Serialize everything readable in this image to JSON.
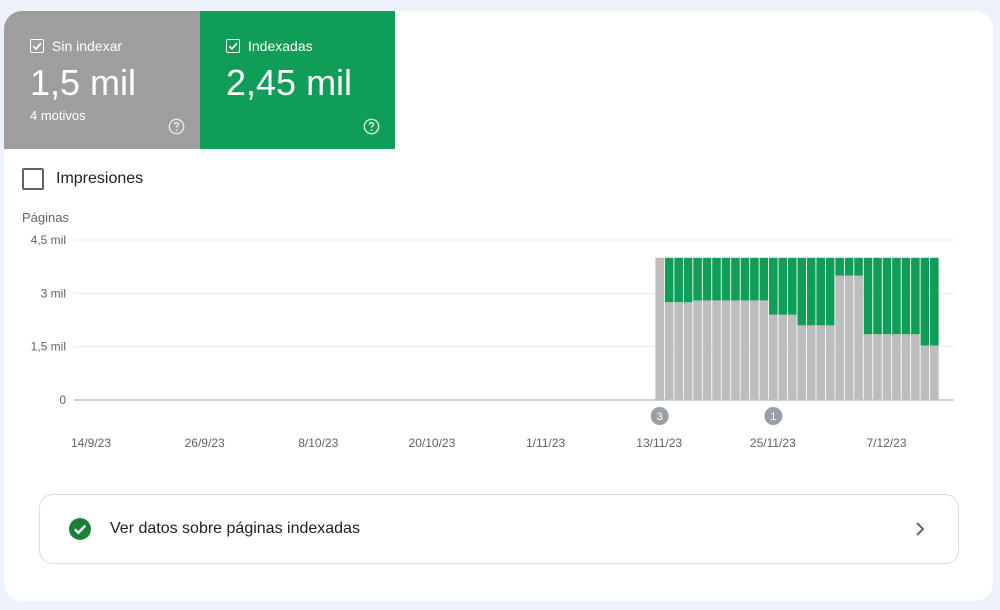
{
  "tiles": {
    "not_indexed": {
      "label": "Sin indexar",
      "value": "1,5 mil",
      "sub": "4 motivos",
      "color": "#9e9e9e",
      "help_icon": "help-circle-icon"
    },
    "indexed": {
      "label": "Indexadas",
      "value": "2,45 mil",
      "color": "#0f9d58",
      "help_icon": "help-circle-icon"
    }
  },
  "impressions_toggle": {
    "label": "Impresiones",
    "checked": false
  },
  "chart_data": {
    "type": "bar",
    "stacked": true,
    "ylabel": "Páginas",
    "yticks": [
      "0",
      "1,5 mil",
      "3 mil",
      "4,5 mil"
    ],
    "ytick_values": [
      0,
      1500,
      3000,
      4500
    ],
    "ylim": [
      0,
      4500
    ],
    "xticks": [
      "14/9/23",
      "26/9/23",
      "8/10/23",
      "20/10/23",
      "1/11/23",
      "13/11/23",
      "25/11/23",
      "7/12/23"
    ],
    "xtick_days": [
      "2023-09-14",
      "2023-09-26",
      "2023-10-08",
      "2023-10-20",
      "2023-11-01",
      "2023-11-13",
      "2023-11-25",
      "2023-12-07"
    ],
    "grid": true,
    "categories": [
      "2023-11-13",
      "2023-11-14",
      "2023-11-15",
      "2023-11-16",
      "2023-11-17",
      "2023-11-18",
      "2023-11-19",
      "2023-11-20",
      "2023-11-21",
      "2023-11-22",
      "2023-11-23",
      "2023-11-24",
      "2023-11-25",
      "2023-11-26",
      "2023-11-27",
      "2023-11-28",
      "2023-11-29",
      "2023-11-30",
      "2023-12-01",
      "2023-12-02",
      "2023-12-03",
      "2023-12-04",
      "2023-12-05",
      "2023-12-06",
      "2023-12-07",
      "2023-12-08",
      "2023-12-09",
      "2023-12-10",
      "2023-12-11",
      "2023-12-12"
    ],
    "series": [
      {
        "name": "Sin indexar",
        "color": "#bdbdbd",
        "values": [
          4000,
          2750,
          2750,
          2750,
          2800,
          2800,
          2800,
          2800,
          2800,
          2800,
          2800,
          2800,
          2400,
          2400,
          2400,
          2100,
          2100,
          2100,
          2100,
          3500,
          3500,
          3500,
          1850,
          1850,
          1850,
          1850,
          1850,
          1850,
          1530,
          1530
        ]
      },
      {
        "name": "Indexadas",
        "color": "#0f9d58",
        "values": [
          0,
          1250,
          1250,
          1250,
          1200,
          1200,
          1200,
          1200,
          1200,
          1200,
          1200,
          1200,
          1600,
          1600,
          1600,
          1900,
          1900,
          1900,
          1900,
          500,
          500,
          500,
          2150,
          2150,
          2150,
          2150,
          2150,
          2150,
          2470,
          2470
        ]
      }
    ],
    "annotations": [
      {
        "label": "3",
        "date": "2023-11-13"
      },
      {
        "label": "1",
        "date": "2023-11-25"
      }
    ]
  },
  "indexed_link": {
    "label": "Ver datos sobre páginas indexadas",
    "check_icon": "check-circle-icon",
    "chevron_icon": "chevron-right-icon"
  }
}
